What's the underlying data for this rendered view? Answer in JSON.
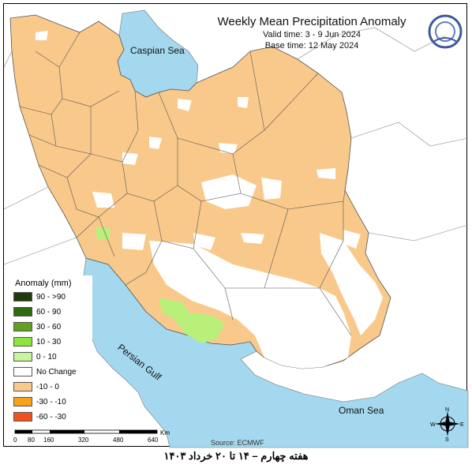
{
  "map": {
    "title": "Weekly Mean Precipitation Anomaly",
    "valid_time": "Valid time: 3 - 9 Jun 2024",
    "base_time": "Base time: 12 May 2024",
    "labels": {
      "caspian": "Caspian Sea",
      "persian_gulf": "Persian Gulf",
      "oman_sea": "Oman Sea"
    },
    "colors": {
      "water": "#a4d8ee",
      "anomaly_fill": "#f9c98b",
      "no_change": "#ffffff",
      "positive_light": "#b8f07a"
    },
    "source": "Source: ECMWF"
  },
  "legend": {
    "title": "Anomaly (mm)",
    "items": [
      {
        "label": "90 - >90",
        "color": "#1f3a0f"
      },
      {
        "label": "60 - 90",
        "color": "#2e6a12"
      },
      {
        "label": "30 - 60",
        "color": "#62a022"
      },
      {
        "label": "10 - 30",
        "color": "#8ee63c"
      },
      {
        "label": "0 - 10",
        "color": "#c8f59a"
      },
      {
        "label": "No Change",
        "color": "#ffffff"
      },
      {
        "label": "-10 - 0",
        "color": "#f9c98b"
      },
      {
        "label": "-30 - -10",
        "color": "#f7a21b"
      },
      {
        "label": "-60 - -30",
        "color": "#f0531e"
      }
    ]
  },
  "scale": {
    "unit": "Km",
    "ticks": [
      "0",
      "80",
      "160",
      "320",
      "480",
      "640"
    ]
  },
  "compass": {
    "n": "N",
    "s": "S",
    "e": "E",
    "w": "W"
  },
  "caption": "هفته چهارم – ۱۴ تا ۲۰ خرداد ۱۴۰۳"
}
